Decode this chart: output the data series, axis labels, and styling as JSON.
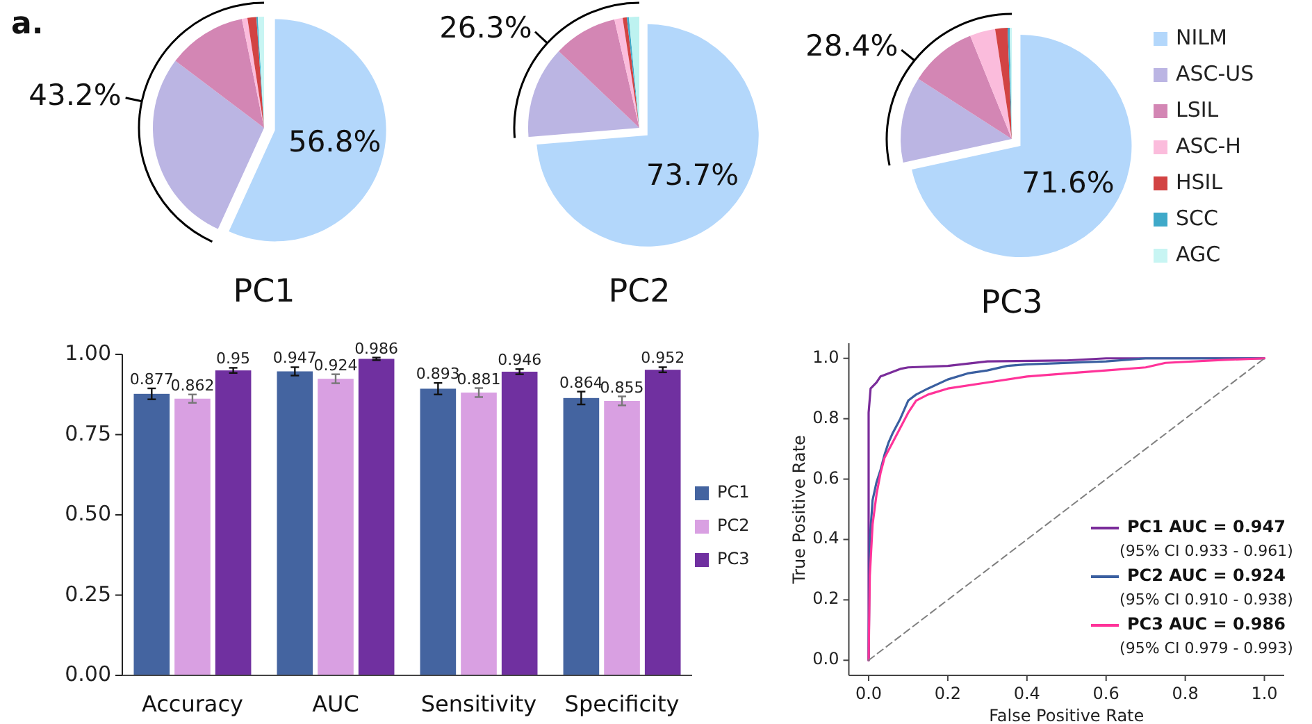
{
  "chart_data": [
    {
      "type": "pie",
      "title": "PC1",
      "categories": [
        null,
        null,
        null,
        null,
        null,
        null,
        null
      ],
      "values": [
        56.8,
        28.5,
        11.5,
        0.8,
        1.3,
        0.2,
        0.9
      ],
      "colors": [
        "#b3d7fb",
        "#bbb5e3",
        "#d386b4",
        "#fbbcdc",
        "#d24343",
        "#3fa9c9",
        "#c8f5f3"
      ],
      "value_labels": [
        "56.8%",
        null,
        null,
        null,
        null,
        null,
        null
      ],
      "annotations": [
        "43.2%",
        "a."
      ]
    },
    {
      "type": "pie",
      "title": "PC2",
      "categories": [
        null,
        null,
        null,
        null,
        null,
        null,
        null
      ],
      "values": [
        73.7,
        13.4,
        9.3,
        1.2,
        0.6,
        0.3,
        1.5
      ],
      "colors": [
        "#b3d7fb",
        "#bbb5e3",
        "#d386b4",
        "#fbbcdc",
        "#d24343",
        "#3fa9c9",
        "#bdf2f0"
      ],
      "value_labels": [
        "73.7%",
        null,
        null,
        null,
        null,
        null,
        null
      ],
      "annotations": [
        "26.3%"
      ]
    },
    {
      "type": "pie",
      "title": "PC3",
      "categories": [
        "NILM",
        "ASC-US",
        "LSIL",
        "ASC-H",
        "HSIL",
        "SCC",
        "AGC"
      ],
      "values": [
        71.6,
        12.5,
        9.8,
        3.7,
        1.8,
        0.3,
        0.3
      ],
      "colors": [
        "#b3d7fb",
        "#bbb5e3",
        "#d386b4",
        "#fbbcdc",
        "#d24343",
        "#3fa9c9",
        "#c8f5f3"
      ],
      "value_labels": [
        "71.6%",
        null,
        null,
        null,
        null,
        null,
        null
      ],
      "annotations": [
        "28.4%"
      ],
      "legend": "right"
    },
    {
      "type": "bar",
      "categories": [
        "Accuracy",
        "AUC",
        "Sensitivity",
        "Specificity"
      ],
      "series": [
        {
          "name": "PC1",
          "color": "#4464a0",
          "values": [
            0.877,
            0.947,
            0.893,
            0.864
          ],
          "errors": [
            0.017,
            0.013,
            0.018,
            0.02
          ]
        },
        {
          "name": "PC2",
          "color": "#d9a0e2",
          "values": [
            0.862,
            0.924,
            0.881,
            0.855
          ],
          "errors": [
            0.013,
            0.014,
            0.014,
            0.014
          ]
        },
        {
          "name": "PC3",
          "color": "#7030a0",
          "values": [
            0.95,
            0.986,
            0.946,
            0.952
          ],
          "errors": [
            0.008,
            0.004,
            0.008,
            0.008
          ]
        }
      ],
      "ylim": [
        0,
        1
      ],
      "yticks": [
        {
          "value": 0,
          "label": "0.00"
        },
        {
          "value": 0.25,
          "label": "0.25"
        },
        {
          "value": 0.5,
          "label": "0.50"
        },
        {
          "value": 0.75,
          "label": "0.75"
        },
        {
          "value": 1,
          "label": "1.00"
        }
      ],
      "data_labels": true,
      "legend": "right"
    },
    {
      "type": "line",
      "xlabel": "False Positive Rate",
      "ylabel": "True Positive Rate",
      "series": [
        {
          "name": "PC1 AUC = 0.947",
          "color": "#7a2c9a",
          "x": [
            0,
            0,
            0.005,
            0.02,
            0.03,
            0.05,
            0.08,
            0.1,
            0.2,
            0.3,
            0.5,
            0.6,
            1
          ],
          "values": [
            0,
            0.82,
            0.9,
            0.92,
            0.94,
            0.95,
            0.965,
            0.97,
            0.975,
            0.99,
            0.993,
            1,
            1
          ]
        },
        {
          "name": "PC2 AUC = 0.924",
          "color": "#3a5fa0",
          "x": [
            0,
            0.003,
            0.01,
            0.02,
            0.03,
            0.04,
            0.05,
            0.06,
            0.08,
            0.1,
            0.12,
            0.15,
            0.2,
            0.25,
            0.3,
            0.35,
            0.4,
            0.6,
            0.7,
            1
          ],
          "values": [
            0,
            0.4,
            0.53,
            0.59,
            0.63,
            0.68,
            0.72,
            0.75,
            0.8,
            0.86,
            0.88,
            0.9,
            0.93,
            0.95,
            0.96,
            0.975,
            0.98,
            0.99,
            1,
            1
          ]
        },
        {
          "name": "PC3 AUC = 0.986",
          "color": "#ff3399",
          "x": [
            0,
            0.003,
            0.01,
            0.02,
            0.03,
            0.04,
            0.06,
            0.08,
            0.1,
            0.12,
            0.15,
            0.2,
            0.3,
            0.4,
            0.5,
            0.6,
            0.7,
            0.75,
            0.9,
            1
          ],
          "values": [
            0,
            0.28,
            0.45,
            0.55,
            0.62,
            0.67,
            0.72,
            0.77,
            0.82,
            0.86,
            0.88,
            0.9,
            0.92,
            0.94,
            0.95,
            0.96,
            0.97,
            0.985,
            0.995,
            1
          ]
        },
        {
          "color": "#808080",
          "x": [
            0,
            1
          ],
          "values": [
            0,
            1
          ],
          "line_style": "dashed"
        }
      ],
      "xlim": [
        -0.05,
        1.05
      ],
      "ylim": [
        -0.05,
        1.05
      ],
      "xticks": [
        {
          "value": 0,
          "label": "0.0"
        },
        0.2,
        0.4,
        0.6,
        0.8,
        {
          "value": 1,
          "label": "1.0"
        }
      ],
      "yticks": [
        {
          "value": 0,
          "label": "0.0"
        },
        0.2,
        0.4,
        0.6,
        0.8,
        {
          "value": 1,
          "label": "1.0"
        }
      ],
      "legend": "bottom right",
      "annotations": [
        "(95% CI 0.933 - 0.961)",
        "(95% CI 0.910 - 0.938)",
        "(95% CI 0.979 - 0.993)"
      ]
    }
  ]
}
